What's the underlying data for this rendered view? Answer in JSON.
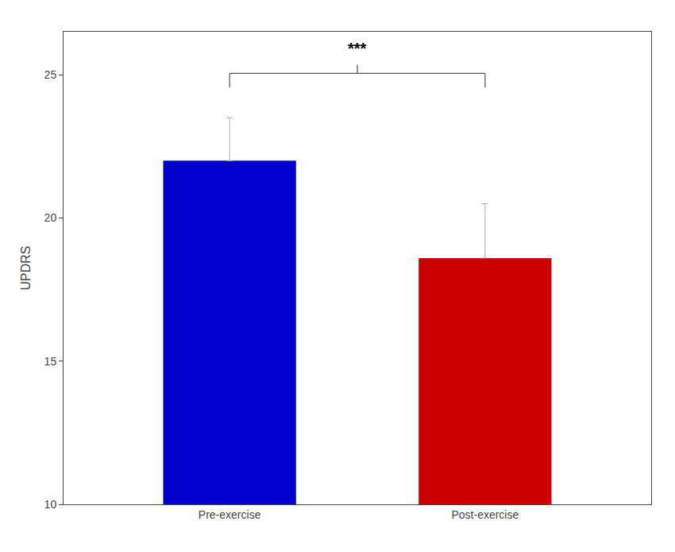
{
  "chart_data": {
    "type": "bar",
    "categories": [
      "Pre-exercise",
      "Post-exercise"
    ],
    "values": [
      22.0,
      18.6
    ],
    "errors_up": [
      1.5,
      1.9
    ],
    "colors": [
      "#0000CC",
      "#CC0000"
    ],
    "ylabel": "UPDRS",
    "ylim": [
      10,
      26.5
    ],
    "yticks": [
      10,
      15,
      20,
      25
    ],
    "grid": false,
    "significance": {
      "text": "***",
      "y": 25.05,
      "notch": 25.35,
      "drop": 24.55,
      "text_y": 25.55
    }
  }
}
